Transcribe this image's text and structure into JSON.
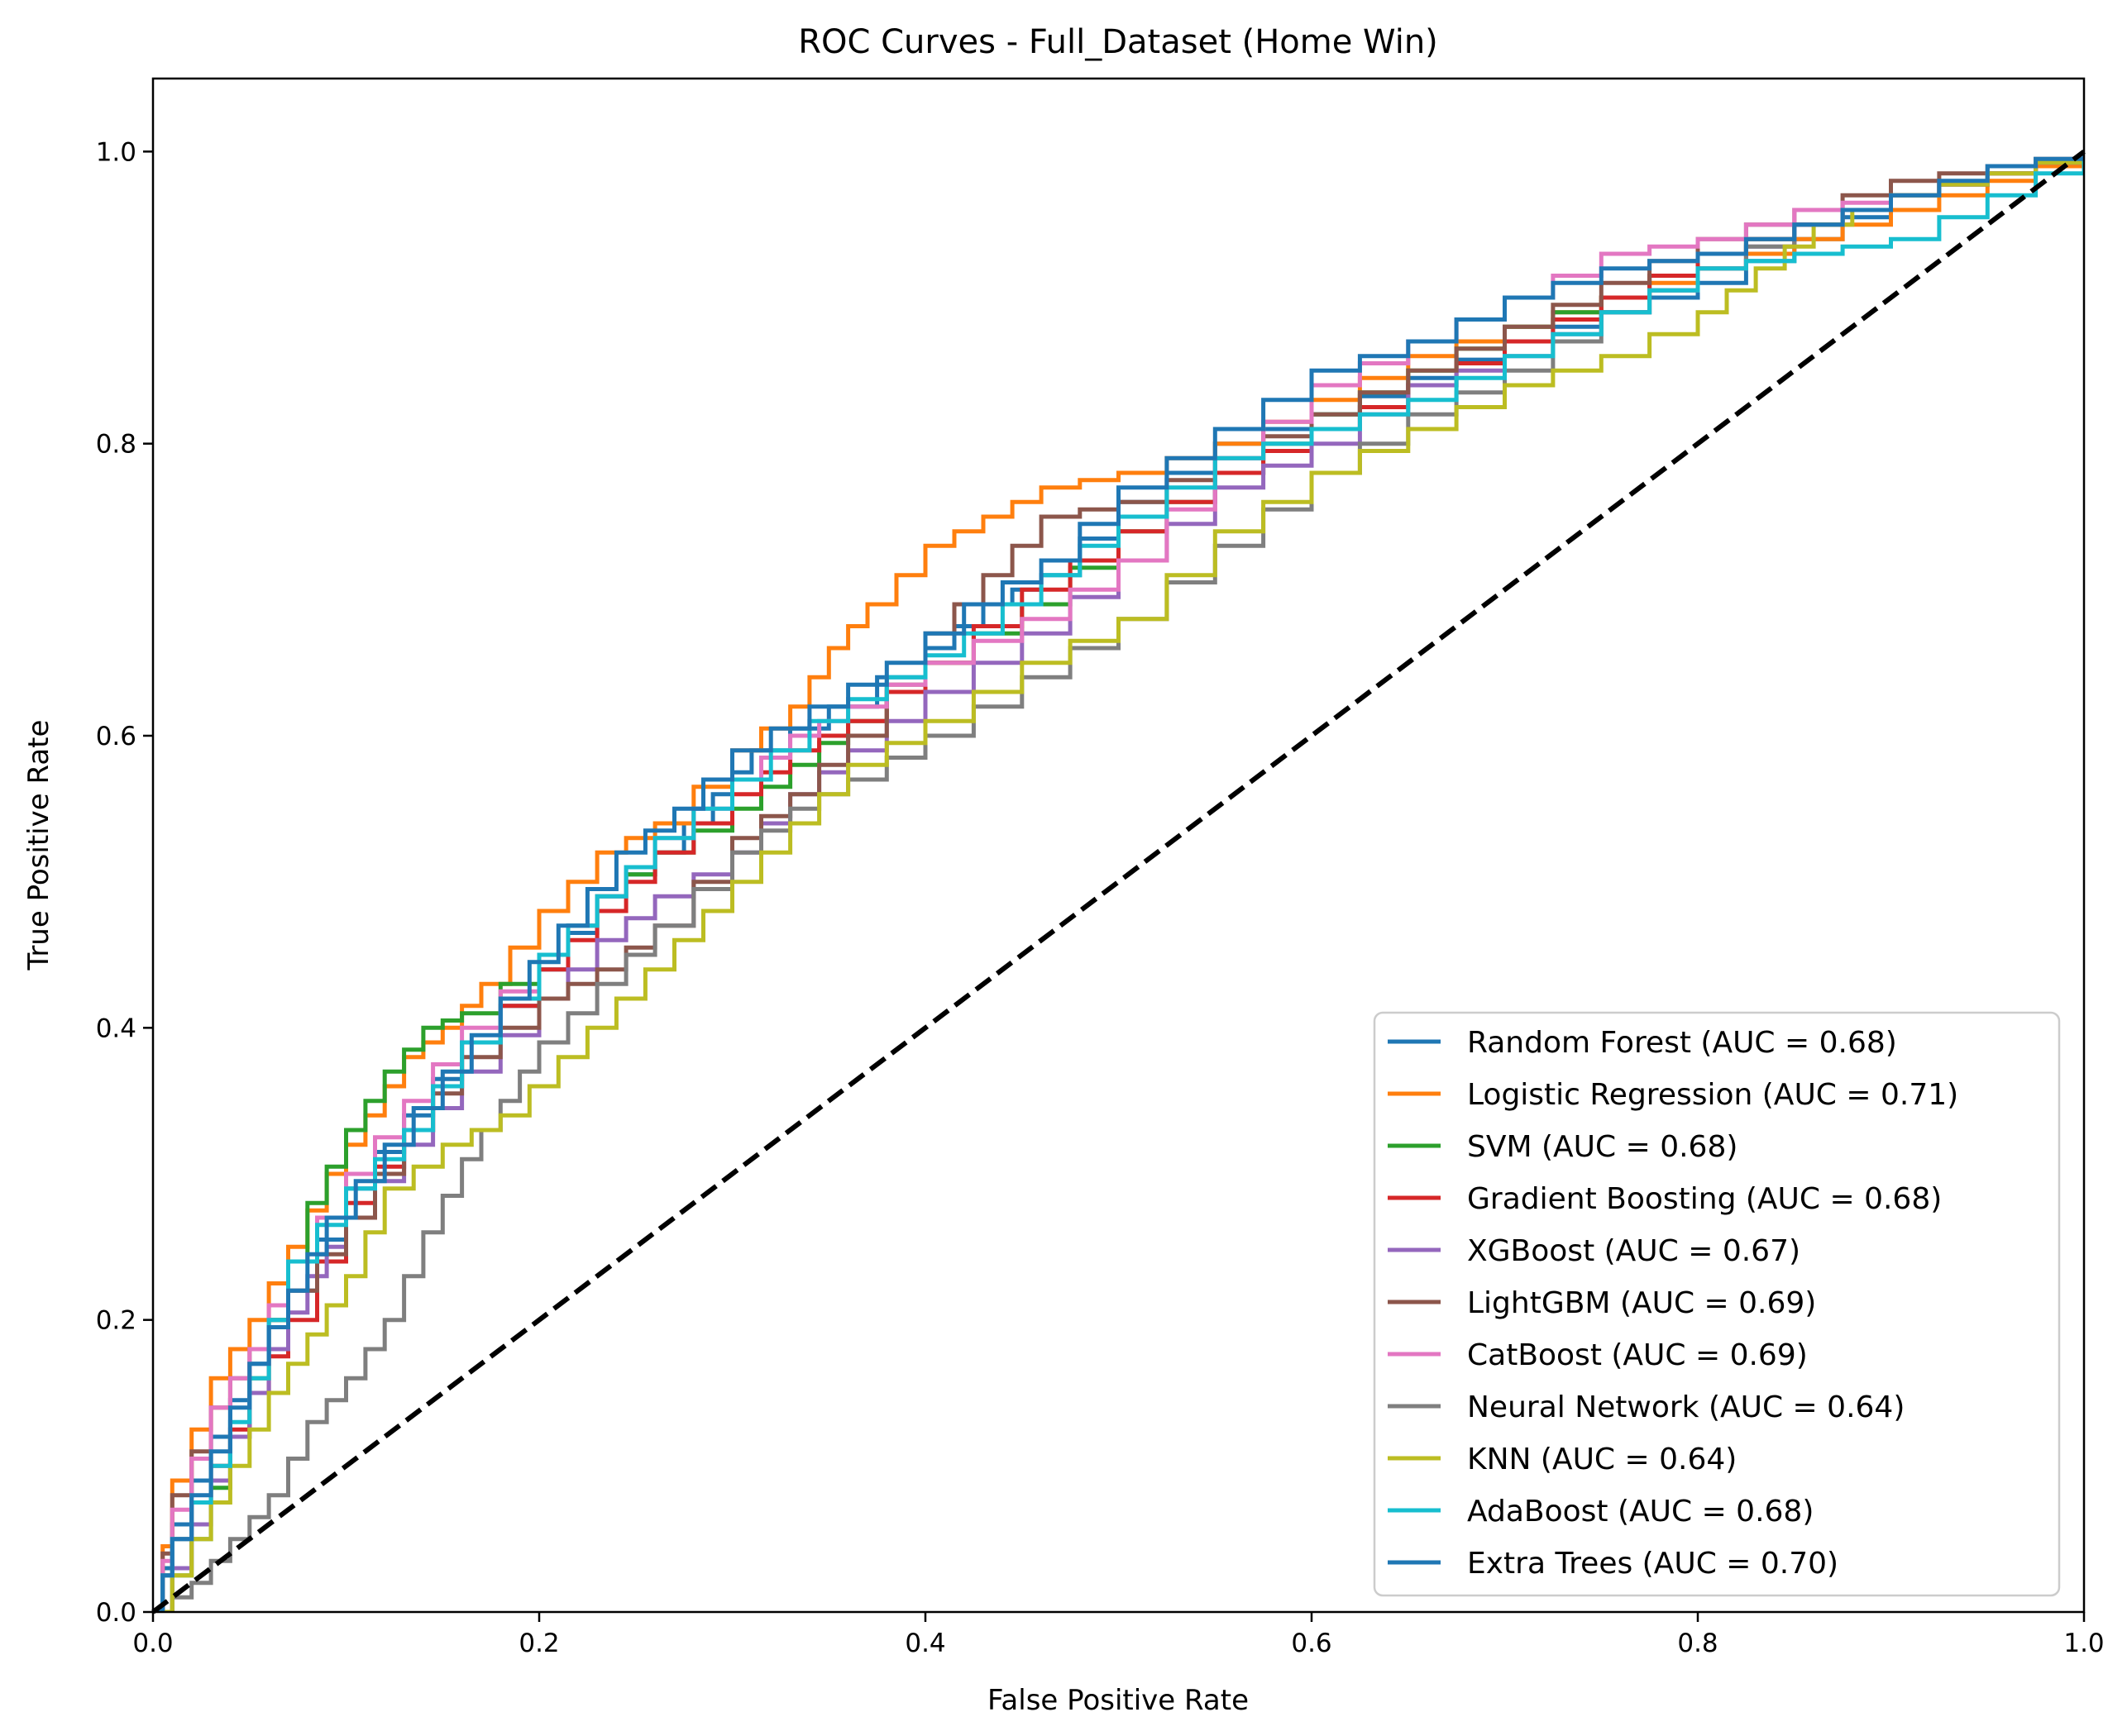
{
  "chart_data": {
    "type": "line",
    "title": "ROC Curves - Full_Dataset (Home Win)",
    "xlabel": "False Positive Rate",
    "ylabel": "True Positive Rate",
    "xlim": [
      0.0,
      1.0
    ],
    "ylim": [
      0.0,
      1.05
    ],
    "xticks": [
      "0.0",
      "0.2",
      "0.4",
      "0.6",
      "0.8",
      "1.0"
    ],
    "yticks": [
      "0.0",
      "0.2",
      "0.4",
      "0.6",
      "0.8",
      "1.0"
    ],
    "grid": false,
    "legend_position": "lower-right",
    "reference_line": {
      "x": [
        0,
        1
      ],
      "y": [
        0,
        1
      ],
      "color": "#000000",
      "style": "dashed"
    },
    "series": [
      {
        "name": "Random Forest (AUC = 0.68)",
        "color": "#1f77b4",
        "x": [
          0,
          0.01,
          0.03,
          0.05,
          0.07,
          0.1,
          0.13,
          0.16,
          0.2,
          0.23,
          0.26,
          0.29,
          0.31,
          0.35,
          0.4,
          0.43,
          0.46,
          0.5,
          0.55,
          0.6,
          0.65,
          0.7,
          0.75,
          0.8,
          0.85,
          0.9,
          0.95,
          1.0
        ],
        "y": [
          0,
          0.06,
          0.12,
          0.17,
          0.22,
          0.29,
          0.34,
          0.39,
          0.44,
          0.49,
          0.52,
          0.56,
          0.59,
          0.62,
          0.66,
          0.69,
          0.71,
          0.76,
          0.8,
          0.82,
          0.845,
          0.87,
          0.89,
          0.91,
          0.94,
          0.97,
          0.985,
          1.0
        ]
      },
      {
        "name": "Logistic Regression (AUC = 0.71)",
        "color": "#ff7f0e",
        "x": [
          0,
          0.01,
          0.03,
          0.05,
          0.07,
          0.09,
          0.11,
          0.13,
          0.15,
          0.17,
          0.2,
          0.23,
          0.26,
          0.3,
          0.33,
          0.35,
          0.37,
          0.4,
          0.43,
          0.46,
          0.5,
          0.55,
          0.6,
          0.65,
          0.7,
          0.75,
          0.8,
          0.85,
          0.9,
          0.95,
          1.0
        ],
        "y": [
          0,
          0.09,
          0.16,
          0.2,
          0.25,
          0.3,
          0.34,
          0.38,
          0.4,
          0.43,
          0.48,
          0.52,
          0.54,
          0.59,
          0.62,
          0.66,
          0.69,
          0.73,
          0.75,
          0.77,
          0.78,
          0.8,
          0.83,
          0.86,
          0.88,
          0.9,
          0.92,
          0.94,
          0.96,
          0.98,
          1.0
        ]
      },
      {
        "name": "SVM (AUC = 0.68)",
        "color": "#2ca02c",
        "x": [
          0,
          0.02,
          0.04,
          0.06,
          0.08,
          0.1,
          0.12,
          0.14,
          0.16,
          0.2,
          0.23,
          0.26,
          0.3,
          0.33,
          0.36,
          0.4,
          0.45,
          0.5,
          0.55,
          0.6,
          0.65,
          0.7,
          0.75,
          0.8,
          0.85,
          0.9,
          0.95,
          1.0
        ],
        "y": [
          0,
          0.05,
          0.12,
          0.2,
          0.28,
          0.33,
          0.37,
          0.4,
          0.41,
          0.45,
          0.49,
          0.52,
          0.55,
          0.58,
          0.61,
          0.65,
          0.69,
          0.74,
          0.78,
          0.82,
          0.85,
          0.88,
          0.9,
          0.93,
          0.95,
          0.97,
          0.985,
          1.0
        ]
      },
      {
        "name": "Gradient Boosting (AUC = 0.68)",
        "color": "#d62728",
        "x": [
          0,
          0.01,
          0.03,
          0.05,
          0.07,
          0.1,
          0.13,
          0.16,
          0.2,
          0.23,
          0.26,
          0.3,
          0.33,
          0.36,
          0.4,
          0.45,
          0.5,
          0.55,
          0.6,
          0.65,
          0.7,
          0.75,
          0.8,
          0.85,
          0.9,
          0.95,
          1.0
        ],
        "y": [
          0,
          0.05,
          0.1,
          0.15,
          0.2,
          0.28,
          0.33,
          0.39,
          0.44,
          0.48,
          0.52,
          0.56,
          0.59,
          0.61,
          0.65,
          0.7,
          0.74,
          0.78,
          0.81,
          0.84,
          0.87,
          0.9,
          0.93,
          0.95,
          0.97,
          0.985,
          1.0
        ]
      },
      {
        "name": "XGBoost (AUC = 0.67)",
        "color": "#9467bd",
        "x": [
          0,
          0.02,
          0.04,
          0.06,
          0.08,
          0.1,
          0.13,
          0.16,
          0.2,
          0.23,
          0.26,
          0.3,
          0.33,
          0.36,
          0.4,
          0.45,
          0.5,
          0.55,
          0.6,
          0.65,
          0.7,
          0.75,
          0.8,
          0.85,
          0.9,
          0.95,
          1.0
        ],
        "y": [
          0,
          0.06,
          0.12,
          0.18,
          0.23,
          0.27,
          0.32,
          0.37,
          0.42,
          0.46,
          0.49,
          0.52,
          0.56,
          0.59,
          0.63,
          0.67,
          0.72,
          0.77,
          0.8,
          0.84,
          0.86,
          0.89,
          0.92,
          0.95,
          0.97,
          0.985,
          1.0
        ]
      },
      {
        "name": "LightGBM (AUC = 0.69)",
        "color": "#8c564b",
        "x": [
          0,
          0.01,
          0.03,
          0.05,
          0.07,
          0.1,
          0.13,
          0.16,
          0.2,
          0.23,
          0.26,
          0.3,
          0.33,
          0.36,
          0.4,
          0.43,
          0.46,
          0.5,
          0.55,
          0.6,
          0.65,
          0.7,
          0.75,
          0.8,
          0.85,
          0.9,
          0.95,
          1.0
        ],
        "y": [
          0,
          0.08,
          0.14,
          0.18,
          0.22,
          0.27,
          0.33,
          0.38,
          0.42,
          0.44,
          0.47,
          0.53,
          0.56,
          0.6,
          0.67,
          0.71,
          0.75,
          0.76,
          0.79,
          0.82,
          0.85,
          0.88,
          0.91,
          0.94,
          0.96,
          0.98,
          0.99,
          1.0
        ]
      },
      {
        "name": "CatBoost (AUC = 0.69)",
        "color": "#e377c2",
        "x": [
          0,
          0.01,
          0.03,
          0.05,
          0.07,
          0.1,
          0.13,
          0.16,
          0.2,
          0.23,
          0.26,
          0.3,
          0.33,
          0.36,
          0.4,
          0.45,
          0.5,
          0.55,
          0.6,
          0.65,
          0.7,
          0.75,
          0.8,
          0.85,
          0.9,
          0.95,
          1.0
        ],
        "y": [
          0,
          0.07,
          0.14,
          0.18,
          0.24,
          0.3,
          0.35,
          0.4,
          0.45,
          0.49,
          0.53,
          0.57,
          0.6,
          0.62,
          0.65,
          0.68,
          0.72,
          0.79,
          0.84,
          0.87,
          0.9,
          0.93,
          0.94,
          0.96,
          0.97,
          0.985,
          1.0
        ]
      },
      {
        "name": "Neural Network (AUC = 0.64)",
        "color": "#7f7f7f",
        "x": [
          0,
          0.02,
          0.04,
          0.06,
          0.08,
          0.1,
          0.12,
          0.14,
          0.16,
          0.18,
          0.2,
          0.23,
          0.26,
          0.3,
          0.33,
          0.36,
          0.4,
          0.45,
          0.5,
          0.55,
          0.6,
          0.65,
          0.7,
          0.75,
          0.8,
          0.85,
          0.9,
          0.95,
          1.0
        ],
        "y": [
          0,
          0.02,
          0.05,
          0.08,
          0.13,
          0.16,
          0.2,
          0.26,
          0.31,
          0.35,
          0.39,
          0.43,
          0.47,
          0.52,
          0.55,
          0.57,
          0.6,
          0.64,
          0.68,
          0.73,
          0.78,
          0.82,
          0.85,
          0.89,
          0.92,
          0.95,
          0.97,
          0.985,
          1.0
        ]
      },
      {
        "name": "KNN (AUC = 0.64)",
        "color": "#bcbd22",
        "x": [
          0,
          0.02,
          0.04,
          0.06,
          0.08,
          0.1,
          0.12,
          0.15,
          0.18,
          0.21,
          0.24,
          0.27,
          0.3,
          0.33,
          0.36,
          0.4,
          0.45,
          0.5,
          0.55,
          0.6,
          0.65,
          0.7,
          0.75,
          0.8,
          0.83,
          0.86,
          0.9,
          0.95,
          1.0
        ],
        "y": [
          0,
          0.05,
          0.1,
          0.15,
          0.19,
          0.23,
          0.29,
          0.32,
          0.34,
          0.38,
          0.42,
          0.46,
          0.5,
          0.54,
          0.58,
          0.61,
          0.65,
          0.68,
          0.74,
          0.78,
          0.81,
          0.84,
          0.86,
          0.89,
          0.92,
          0.95,
          0.97,
          0.985,
          1.0
        ]
      },
      {
        "name": "AdaBoost (AUC = 0.68)",
        "color": "#17becf",
        "x": [
          0,
          0.01,
          0.03,
          0.05,
          0.07,
          0.1,
          0.13,
          0.16,
          0.2,
          0.23,
          0.26,
          0.3,
          0.34,
          0.38,
          0.42,
          0.46,
          0.5,
          0.55,
          0.6,
          0.65,
          0.7,
          0.75,
          0.8,
          0.85,
          0.9,
          0.95,
          1.0
        ],
        "y": [
          0,
          0.05,
          0.1,
          0.16,
          0.24,
          0.29,
          0.33,
          0.39,
          0.45,
          0.49,
          0.53,
          0.57,
          0.61,
          0.64,
          0.67,
          0.71,
          0.75,
          0.79,
          0.81,
          0.83,
          0.86,
          0.89,
          0.92,
          0.93,
          0.94,
          0.97,
          1.0
        ]
      },
      {
        "name": "Extra Trees (AUC = 0.70)",
        "color": "#1f77b4",
        "x": [
          0,
          0.01,
          0.03,
          0.05,
          0.07,
          0.09,
          0.12,
          0.15,
          0.18,
          0.21,
          0.24,
          0.27,
          0.3,
          0.34,
          0.38,
          0.42,
          0.46,
          0.5,
          0.55,
          0.6,
          0.65,
          0.7,
          0.75,
          0.8,
          0.85,
          0.9,
          0.95,
          1.0
        ],
        "y": [
          0,
          0.05,
          0.11,
          0.17,
          0.22,
          0.27,
          0.32,
          0.37,
          0.42,
          0.47,
          0.52,
          0.55,
          0.59,
          0.62,
          0.65,
          0.69,
          0.72,
          0.77,
          0.81,
          0.85,
          0.87,
          0.9,
          0.92,
          0.93,
          0.95,
          0.97,
          0.99,
          1.0
        ]
      }
    ]
  }
}
